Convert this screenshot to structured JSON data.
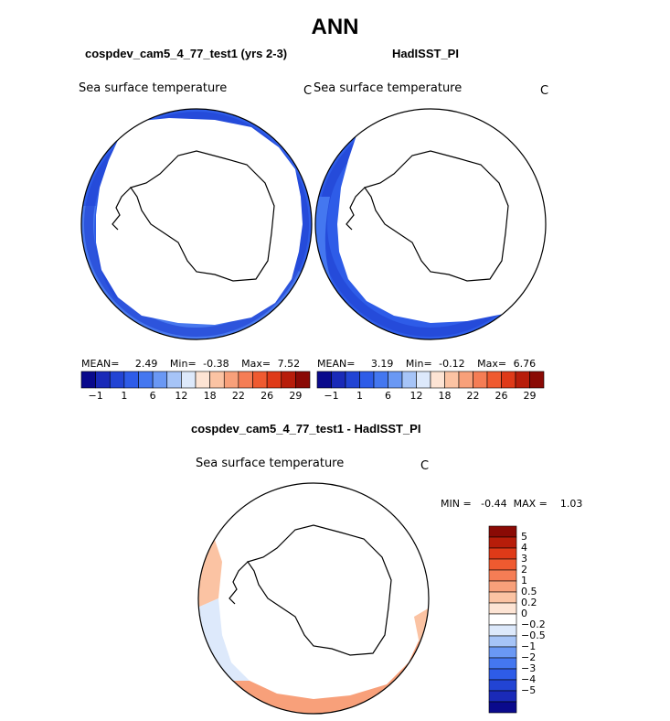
{
  "title": "ANN",
  "panel_left": {
    "title": "cospdev_cam5_4_77_test1 (yrs 2-3)",
    "variable": "Sea surface temperature",
    "units": "C",
    "mean_label": "MEAN=",
    "mean": "2.49",
    "min_label": "Min=",
    "min": "-0.38",
    "max_label": "Max=",
    "max": "7.52"
  },
  "panel_right": {
    "title": "HadISST_PI",
    "variable": "Sea surface temperature",
    "units": "C",
    "mean_label": "MEAN=",
    "mean": "3.19",
    "min_label": "Min=",
    "min": "-0.12",
    "max_label": "Max=",
    "max": "6.76"
  },
  "abs_colorbar": {
    "colors": [
      "#0a0a8c",
      "#1a2ab8",
      "#2244d4",
      "#2e5ce8",
      "#4477f0",
      "#6a98f4",
      "#a6c4f7",
      "#dde9fb",
      "#fde4d4",
      "#fbc3a3",
      "#f8a07a",
      "#f57d55",
      "#ef5a30",
      "#df3a18",
      "#b71d0a",
      "#8a0a05"
    ],
    "labels": [
      "-1",
      "1",
      "6",
      "12",
      "18",
      "22",
      "26",
      "29"
    ]
  },
  "panel_diff": {
    "title": "cospdev_cam5_4_77_test1 - HadISST_PI",
    "variable": "Sea surface temperature",
    "units": "C",
    "stats": "MIN =   -0.44  MAX =    1.03"
  },
  "diff_colorbar": {
    "colors": [
      "#8a0a05",
      "#b71d0a",
      "#df3a18",
      "#ef5a30",
      "#f57d55",
      "#f8a07a",
      "#fbc3a3",
      "#fde4d4",
      "#ffffff",
      "#dde9fb",
      "#a6c4f7",
      "#6a98f4",
      "#4477f0",
      "#2e5ce8",
      "#2244d4",
      "#1a2ab8",
      "#0a0a8c"
    ],
    "labels": [
      "5",
      "4",
      "3",
      "2",
      "1",
      "0.5",
      "0.2",
      "0",
      "-0.2",
      "-0.5",
      "-1",
      "-2",
      "-3",
      "-4",
      "-5"
    ]
  },
  "colors": {
    "ocean_dark": "#2244d4",
    "ocean_mid": "#2e5ce8",
    "ocean_light": "#4477f0",
    "diff_warm": "#f8a07a",
    "diff_light_warm": "#fbc3a3",
    "diff_cool": "#dde9fb"
  }
}
